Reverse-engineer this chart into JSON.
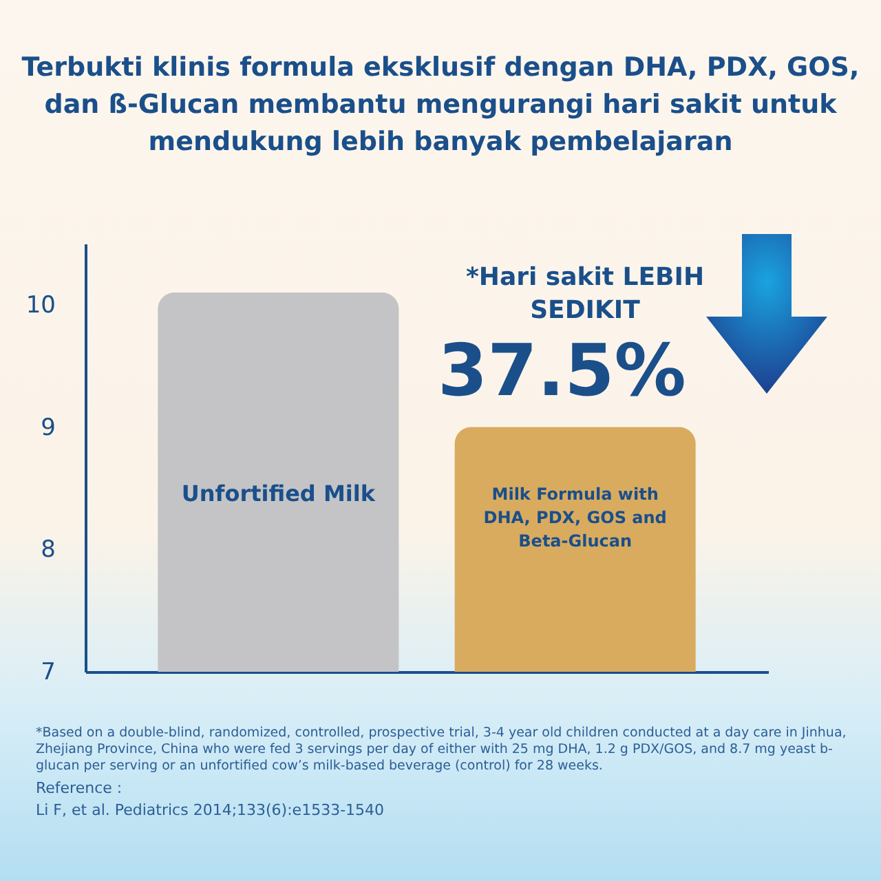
{
  "chart_data": {
    "type": "bar",
    "title": "Terbukti klinis formula eksklusif dengan DHA, PDX, GOS, dan ß-Glucan membantu mengurangi hari sakit untuk mendukung lebih banyak pembelajaran",
    "categories": [
      "Unfortified Milk",
      "Milk Formula with DHA, PDX, GOS and Beta-Glucan"
    ],
    "values": [
      10.1,
      9.0
    ],
    "colors": [
      "#c4c4c6",
      "#d9ab5f"
    ],
    "ylim": [
      7,
      10.5
    ],
    "yticks": [
      7,
      8,
      9,
      10
    ],
    "grid": false,
    "tick_labels": "y",
    "annotations": [
      "*Hari sakit LEBIH SEDIKIT",
      "37.5%",
      "*Based on a double-blind, randomized, controlled, prospective trial, 3-4 year old children conducted at a day care in Jinhua, Zhejiang Province, China who were fed 3 servings per day of either with 25 mg DHA, 1.2 g PDX/GOS, and 8.7 mg yeast b-glucan per serving or an unfortified cow’s milk-based beverage (control) for 28 weeks.",
      "Reference :",
      "Li F, et al. Pediatrics 2014;133(6):e1533-1540"
    ]
  }
}
